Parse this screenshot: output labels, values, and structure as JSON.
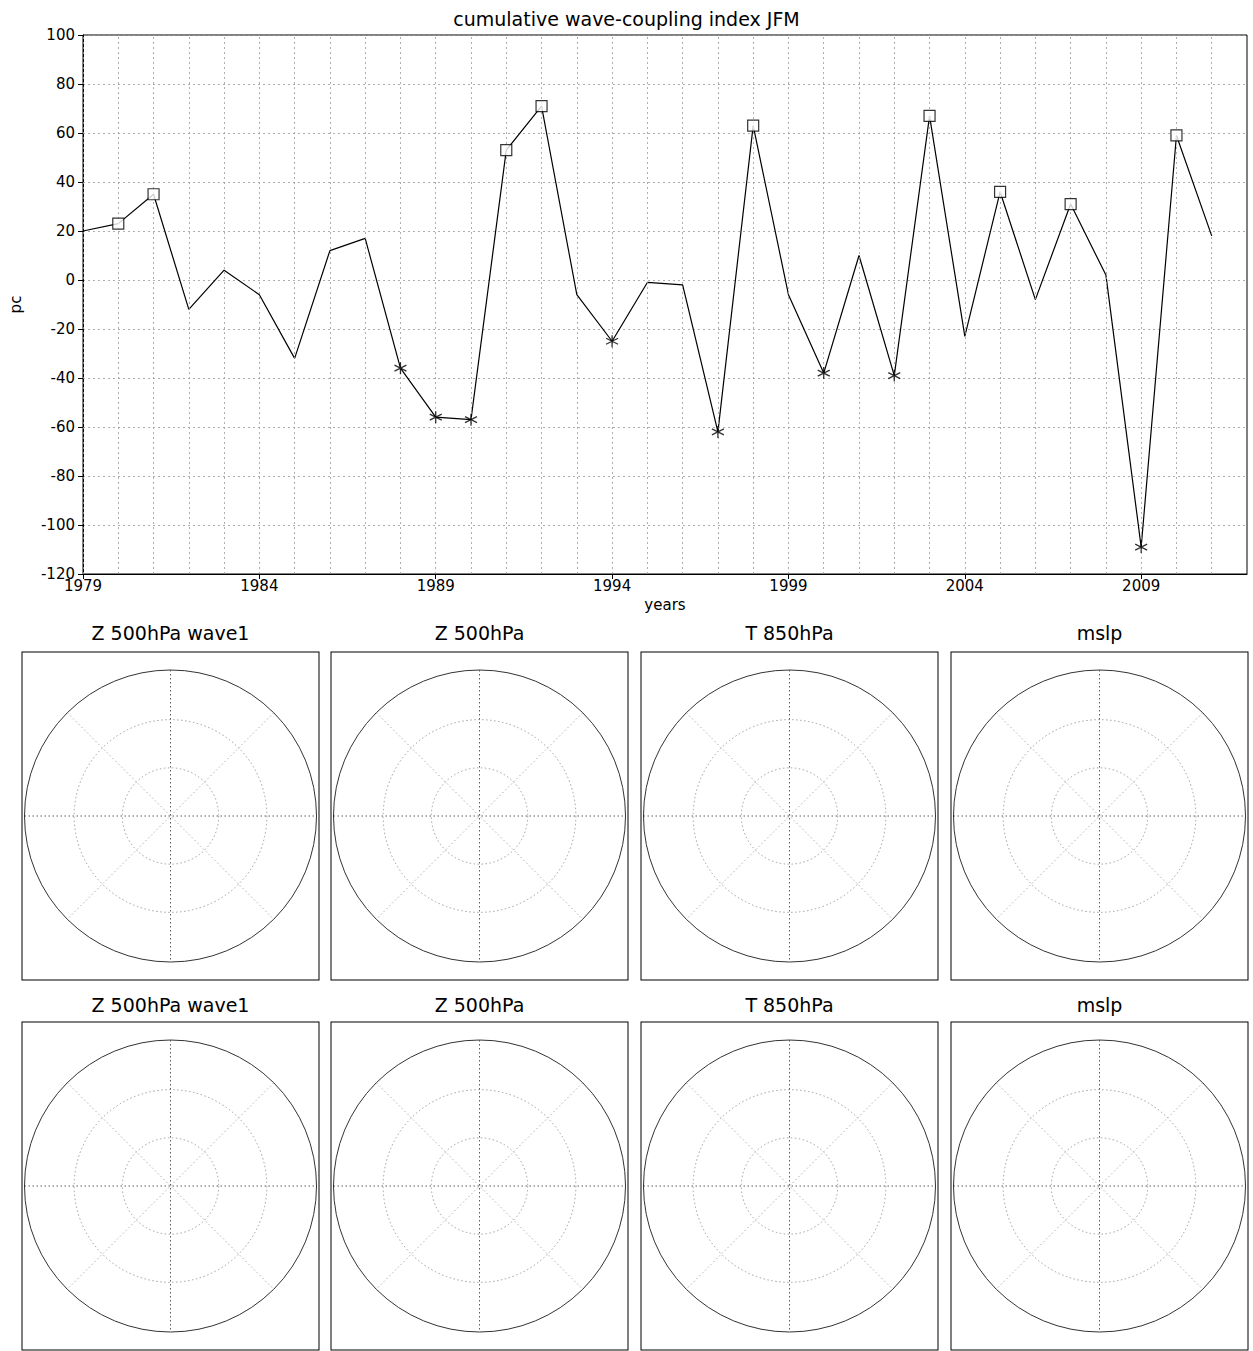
{
  "chart_data": {
    "type": "line",
    "title": "cumulative wave-coupling index JFM",
    "x_label": "years",
    "y_label": "pc",
    "x": [
      1979,
      1980,
      1981,
      1982,
      1983,
      1984,
      1985,
      1986,
      1987,
      1988,
      1989,
      1990,
      1991,
      1992,
      1993,
      1994,
      1995,
      1996,
      1997,
      1998,
      1999,
      2000,
      2001,
      2002,
      2003,
      2004,
      2005,
      2006,
      2007,
      2008,
      2009,
      2010,
      2011
    ],
    "series": [
      {
        "type": "line",
        "color": "#000000",
        "values": [
          20,
          23,
          35,
          -12,
          4,
          -6,
          -32,
          12,
          17,
          -36,
          -56,
          -57,
          53,
          71,
          -6,
          -25,
          -1,
          -2,
          -62,
          63,
          -6,
          -38,
          10,
          -39,
          67,
          -23,
          36,
          -8,
          31,
          2,
          -109,
          59,
          18
        ]
      },
      {
        "type": "scatter",
        "marker": "square",
        "color": "#000000",
        "values": [
          null,
          23,
          35,
          null,
          null,
          null,
          null,
          null,
          null,
          null,
          null,
          null,
          53,
          71,
          null,
          null,
          null,
          null,
          null,
          63,
          null,
          null,
          null,
          null,
          67,
          null,
          36,
          null,
          31,
          null,
          null,
          59,
          null
        ]
      },
      {
        "type": "scatter",
        "marker": "star",
        "color": "#000000",
        "values": [
          null,
          null,
          null,
          null,
          null,
          null,
          null,
          null,
          null,
          -36,
          -56,
          -57,
          null,
          null,
          null,
          -25,
          null,
          null,
          -62,
          null,
          null,
          -38,
          null,
          -39,
          null,
          null,
          null,
          null,
          null,
          null,
          -109,
          null,
          null
        ]
      }
    ],
    "xlim": [
      1979,
      2012
    ],
    "xticks": [
      1979,
      1984,
      1989,
      1994,
      1999,
      2004,
      2009
    ],
    "ylim": [
      -120,
      100
    ],
    "yticks": [
      -120,
      -100,
      -80,
      -60,
      -40,
      -20,
      0,
      20,
      40,
      60,
      80,
      100
    ],
    "grid": true
  },
  "panels": [
    [
      "Z 500hPa wave1",
      "Z 500hPa",
      "T 850hPa",
      "mslp"
    ],
    [
      "Z 500hPa wave1",
      "Z 500hPa",
      "T 850hPa",
      "mslp"
    ]
  ]
}
